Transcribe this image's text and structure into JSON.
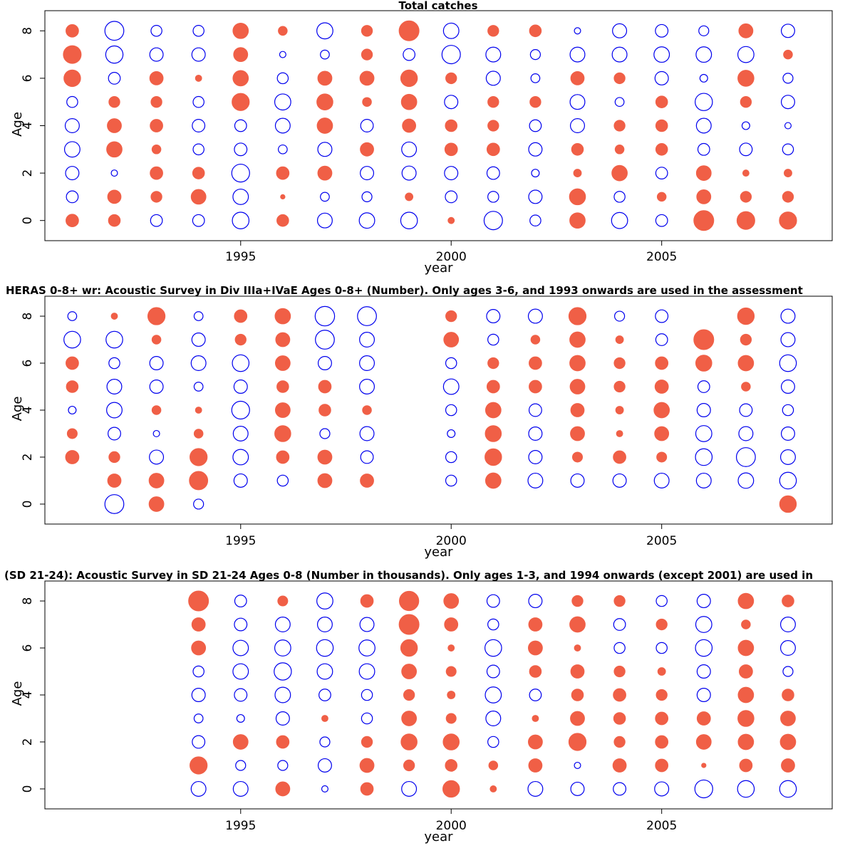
{
  "chart_data": [
    {
      "type": "scatter",
      "title": "Total catches",
      "xlabel": "year",
      "ylabel": "Age",
      "xlim": [
        1990.35,
        2009.05
      ],
      "ylim": [
        -0.85,
        8.85
      ],
      "x_ticks": [
        1995,
        2000,
        2005
      ],
      "y_ticks": [
        0,
        2,
        4,
        6,
        8
      ],
      "years": [
        1991,
        1992,
        1993,
        1994,
        1995,
        1996,
        1997,
        1998,
        1999,
        2000,
        2001,
        2002,
        2003,
        2004,
        2005,
        2006,
        2007,
        2008
      ],
      "series": [
        {
          "age": 8,
          "values": [
            0.4,
            -0.9,
            -0.3,
            -0.3,
            0.6,
            0.2,
            -0.65,
            0.3,
            1.0,
            -0.6,
            0.3,
            0.35,
            -0.1,
            -0.5,
            -0.4,
            -0.25,
            0.5,
            -0.45
          ]
        },
        {
          "age": 7,
          "values": [
            0.8,
            -0.75,
            -0.45,
            -0.45,
            0.5,
            -0.1,
            -0.2,
            0.3,
            -0.35,
            -0.85,
            -0.55,
            -0.25,
            -0.55,
            -0.55,
            -0.6,
            -0.6,
            -0.65,
            0.2
          ]
        },
        {
          "age": 6,
          "values": [
            0.7,
            -0.35,
            0.45,
            0.1,
            0.6,
            -0.3,
            0.5,
            0.5,
            0.7,
            0.3,
            -0.5,
            -0.2,
            0.45,
            0.3,
            -0.45,
            -0.15,
            0.65,
            -0.25
          ]
        },
        {
          "age": 5,
          "values": [
            -0.3,
            0.3,
            0.3,
            -0.3,
            0.75,
            -0.65,
            0.65,
            0.2,
            0.6,
            -0.45,
            0.3,
            0.3,
            -0.55,
            -0.2,
            0.35,
            -0.75,
            0.3,
            -0.45
          ]
        },
        {
          "age": 4,
          "values": [
            -0.5,
            0.5,
            0.4,
            -0.4,
            -0.35,
            -0.55,
            0.6,
            -0.4,
            0.45,
            0.35,
            0.3,
            -0.35,
            -0.5,
            0.3,
            0.35,
            -0.55,
            -0.15,
            -0.1
          ]
        },
        {
          "age": 3,
          "values": [
            -0.6,
            0.6,
            0.2,
            -0.3,
            -0.4,
            -0.2,
            -0.5,
            0.45,
            -0.55,
            0.4,
            0.4,
            -0.45,
            0.35,
            0.2,
            0.35,
            -0.35,
            -0.4,
            -0.3
          ]
        },
        {
          "age": 2,
          "values": [
            -0.45,
            -0.1,
            0.4,
            0.35,
            -0.8,
            0.4,
            0.5,
            -0.45,
            -0.5,
            -0.45,
            -0.4,
            -0.15,
            0.15,
            0.6,
            -0.35,
            0.55,
            0.1,
            0.15
          ]
        },
        {
          "age": 1,
          "values": [
            -0.35,
            0.45,
            0.3,
            0.55,
            -0.6,
            0.05,
            -0.2,
            -0.25,
            0.15,
            -0.35,
            -0.3,
            -0.45,
            0.65,
            -0.3,
            0.2,
            0.5,
            0.3,
            0.3
          ]
        },
        {
          "age": 0,
          "values": [
            0.4,
            0.35,
            -0.35,
            -0.35,
            -0.7,
            0.35,
            -0.55,
            -0.6,
            -0.7,
            0.1,
            -0.85,
            -0.3,
            0.6,
            -0.65,
            -0.35,
            1.0,
            0.8,
            0.75
          ]
        }
      ]
    },
    {
      "type": "scatter",
      "title": "HERAS 0-8+ wr: Acoustic Survey in Div IIIa+IVaE Ages 0-8+ (Number). Only ages 3-6, and 1993 onwards are used in the assessment",
      "xlabel": "year",
      "ylabel": "Age",
      "xlim": [
        1990.35,
        2009.05
      ],
      "ylim": [
        -0.85,
        8.85
      ],
      "x_ticks": [
        1995,
        2000,
        2005
      ],
      "y_ticks": [
        0,
        2,
        4,
        6,
        8
      ],
      "years": [
        1991,
        1992,
        1993,
        1994,
        1995,
        1996,
        1997,
        1998,
        1999,
        2000,
        2001,
        2002,
        2003,
        2004,
        2005,
        2006,
        2007,
        2008
      ],
      "series": [
        {
          "age": 8,
          "values": [
            -0.2,
            0.1,
            0.75,
            -0.2,
            0.4,
            0.6,
            -0.95,
            -0.9,
            null,
            0.3,
            -0.45,
            -0.5,
            0.75,
            -0.25,
            -0.4,
            null,
            0.7,
            -0.5
          ]
        },
        {
          "age": 7,
          "values": [
            -0.7,
            -0.7,
            0.2,
            -0.45,
            0.3,
            0.5,
            -0.9,
            -0.55,
            null,
            0.55,
            -0.3,
            0.2,
            0.6,
            0.15,
            -0.35,
            1.0,
            0.3,
            -0.5
          ]
        },
        {
          "age": 6,
          "values": [
            0.4,
            -0.3,
            -0.45,
            -0.55,
            -0.7,
            0.55,
            -0.45,
            -0.55,
            null,
            -0.3,
            0.3,
            0.4,
            0.6,
            0.3,
            0.4,
            0.65,
            0.6,
            -0.7
          ]
        },
        {
          "age": 5,
          "values": [
            0.35,
            -0.55,
            -0.45,
            -0.2,
            -0.45,
            0.35,
            0.4,
            -0.55,
            null,
            -0.6,
            0.4,
            0.4,
            0.55,
            0.3,
            0.45,
            -0.35,
            0.2,
            -0.45
          ]
        },
        {
          "age": 4,
          "values": [
            -0.15,
            -0.6,
            0.2,
            0.1,
            -0.8,
            0.55,
            0.35,
            0.2,
            null,
            -0.3,
            0.6,
            -0.4,
            0.45,
            0.15,
            0.6,
            -0.45,
            -0.4,
            -0.3
          ]
        },
        {
          "age": 3,
          "values": [
            0.25,
            -0.4,
            -0.1,
            0.2,
            -0.55,
            0.65,
            -0.25,
            -0.5,
            null,
            -0.15,
            0.65,
            -0.45,
            0.5,
            0.1,
            0.5,
            -0.65,
            -0.5,
            -0.45
          ]
        },
        {
          "age": 2,
          "values": [
            0.45,
            0.3,
            -0.5,
            0.75,
            -0.6,
            0.4,
            0.5,
            -0.4,
            null,
            -0.3,
            0.7,
            -0.45,
            0.25,
            0.4,
            0.25,
            -0.7,
            -0.9,
            -0.55
          ]
        },
        {
          "age": 1,
          "values": [
            null,
            0.45,
            0.55,
            0.85,
            -0.45,
            -0.3,
            0.5,
            0.45,
            null,
            -0.3,
            0.6,
            -0.55,
            -0.45,
            -0.45,
            -0.55,
            -0.55,
            -0.6,
            -0.7
          ]
        },
        {
          "age": 0,
          "values": [
            null,
            -0.9,
            0.55,
            -0.25,
            null,
            null,
            null,
            null,
            null,
            null,
            null,
            null,
            null,
            null,
            null,
            null,
            null,
            0.7
          ]
        }
      ]
    },
    {
      "type": "scatter",
      "title": "(SD 21-24): Acoustic Survey in SD 21-24 Ages 0-8 (Number in thousands). Only ages 1-3, and 1994 onwards (except 2001) are used in",
      "xlabel": "year",
      "ylabel": "Age",
      "xlim": [
        1990.35,
        2009.05
      ],
      "ylim": [
        -0.85,
        8.85
      ],
      "x_ticks": [
        1995,
        2000,
        2005
      ],
      "y_ticks": [
        0,
        2,
        4,
        6,
        8
      ],
      "years": [
        1991,
        1992,
        1993,
        1994,
        1995,
        1996,
        1997,
        1998,
        1999,
        2000,
        2001,
        2002,
        2003,
        2004,
        2005,
        2006,
        2007,
        2008
      ],
      "series": [
        {
          "age": 8,
          "values": [
            null,
            null,
            null,
            1.0,
            -0.35,
            0.25,
            -0.65,
            0.4,
            0.95,
            0.55,
            -0.4,
            -0.45,
            0.3,
            0.3,
            -0.3,
            -0.45,
            0.6,
            0.35
          ]
        },
        {
          "age": 7,
          "values": [
            null,
            null,
            null,
            0.45,
            -0.4,
            -0.55,
            -0.55,
            -0.5,
            1.0,
            0.45,
            -0.3,
            0.45,
            0.6,
            -0.35,
            0.3,
            -0.65,
            0.2,
            -0.55
          ]
        },
        {
          "age": 6,
          "values": [
            null,
            null,
            null,
            0.5,
            -0.6,
            -0.65,
            -0.7,
            -0.65,
            0.7,
            0.1,
            -0.7,
            0.5,
            0.1,
            -0.3,
            -0.3,
            -0.7,
            0.6,
            -0.55
          ]
        },
        {
          "age": 5,
          "values": [
            null,
            null,
            null,
            -0.3,
            -0.6,
            -0.75,
            -0.6,
            -0.6,
            0.55,
            0.25,
            -0.4,
            0.35,
            0.45,
            0.3,
            0.15,
            -0.45,
            0.45,
            -0.25
          ]
        },
        {
          "age": 4,
          "values": [
            null,
            null,
            null,
            -0.45,
            -0.4,
            -0.6,
            -0.35,
            -0.3,
            0.3,
            0.15,
            -0.65,
            -0.35,
            0.35,
            0.4,
            0.3,
            -0.45,
            0.6,
            0.35
          ]
        },
        {
          "age": 3,
          "values": [
            null,
            null,
            null,
            -0.2,
            -0.15,
            -0.45,
            0.1,
            -0.3,
            0.55,
            0.25,
            -0.55,
            0.1,
            0.5,
            0.35,
            0.4,
            0.45,
            0.65,
            0.55
          ]
        },
        {
          "age": 2,
          "values": [
            null,
            null,
            null,
            -0.4,
            0.55,
            0.4,
            -0.25,
            0.3,
            0.65,
            0.65,
            -0.3,
            0.5,
            0.75,
            0.3,
            0.4,
            0.55,
            0.6,
            0.6
          ]
        },
        {
          "age": 1,
          "values": [
            null,
            null,
            null,
            0.75,
            -0.25,
            -0.25,
            -0.45,
            0.5,
            0.3,
            0.35,
            0.2,
            0.45,
            -0.1,
            0.45,
            0.4,
            0.05,
            0.4,
            0.45
          ]
        },
        {
          "age": 0,
          "values": [
            null,
            null,
            null,
            -0.55,
            -0.55,
            0.5,
            -0.1,
            0.4,
            -0.55,
            0.7,
            0.1,
            -0.55,
            -0.45,
            -0.4,
            -0.5,
            -0.8,
            -0.7,
            -0.7
          ]
        }
      ]
    }
  ],
  "colors": {
    "positive": "#f05f46",
    "negative": "#0000ee",
    "frame": "#000000"
  }
}
